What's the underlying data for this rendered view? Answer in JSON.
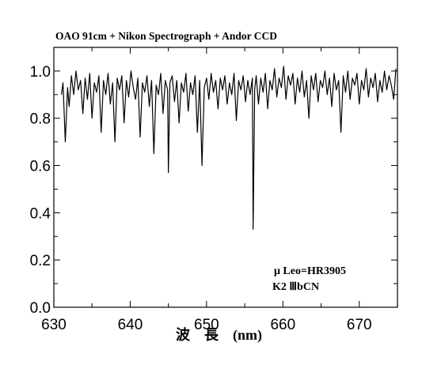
{
  "chart_data": {
    "type": "line",
    "title": "OAO 91cm + Nikon Spectrograph + Andor CCD",
    "xlabel": "波　長　(nm)",
    "ylabel": "",
    "xlim": [
      630,
      675
    ],
    "ylim": [
      0.0,
      1.1
    ],
    "x_ticks": [
      630,
      640,
      650,
      660,
      670
    ],
    "x_tick_labels": [
      "630",
      "640",
      "650",
      "660",
      "670"
    ],
    "y_ticks": [
      0.0,
      0.2,
      0.4,
      0.6,
      0.8,
      1.0
    ],
    "y_tick_labels": [
      "0.0",
      "0.2",
      "0.4",
      "0.6",
      "0.8",
      "1.0"
    ],
    "grid": false,
    "annotations": [
      "μ Leo=HR3905",
      "K2 ⅢbCN"
    ],
    "series": [
      {
        "color": "#000000",
        "x": [
          631.0,
          631.2,
          631.5,
          631.8,
          632.0,
          632.3,
          632.6,
          632.9,
          633.2,
          633.5,
          633.8,
          634.1,
          634.4,
          634.7,
          635.0,
          635.3,
          635.6,
          635.9,
          636.2,
          636.5,
          636.8,
          637.1,
          637.4,
          637.7,
          638.0,
          638.3,
          638.6,
          638.9,
          639.2,
          639.5,
          639.8,
          640.1,
          640.4,
          640.7,
          641.0,
          641.3,
          641.6,
          641.9,
          642.2,
          642.5,
          642.8,
          643.1,
          643.4,
          643.7,
          644.0,
          644.3,
          644.6,
          644.9,
          645.0,
          645.2,
          645.5,
          645.8,
          646.1,
          646.4,
          646.7,
          647.0,
          647.3,
          647.6,
          647.9,
          648.2,
          648.5,
          648.8,
          649.1,
          649.4,
          649.7,
          650.0,
          650.3,
          650.6,
          650.9,
          651.2,
          651.5,
          651.8,
          652.1,
          652.4,
          652.7,
          653.0,
          653.3,
          653.6,
          653.9,
          654.2,
          654.5,
          654.8,
          655.1,
          655.4,
          655.7,
          656.0,
          656.1,
          656.3,
          656.5,
          656.8,
          657.1,
          657.4,
          657.7,
          658.0,
          658.3,
          658.6,
          658.9,
          659.2,
          659.5,
          659.8,
          660.1,
          660.4,
          660.7,
          661.0,
          661.3,
          661.6,
          661.9,
          662.2,
          662.5,
          662.8,
          663.1,
          663.4,
          663.7,
          664.0,
          664.3,
          664.6,
          664.9,
          665.2,
          665.5,
          665.8,
          666.1,
          666.4,
          666.7,
          667.0,
          667.3,
          667.6,
          667.9,
          668.2,
          668.5,
          668.8,
          669.1,
          669.4,
          669.7,
          670.0,
          670.3,
          670.6,
          670.9,
          671.2,
          671.5,
          671.8,
          672.1,
          672.4,
          672.7,
          673.0,
          673.3,
          673.6,
          673.9,
          674.2,
          674.5,
          674.8
        ],
        "y": [
          0.9,
          0.95,
          0.7,
          0.93,
          0.85,
          0.98,
          0.9,
          1.0,
          0.92,
          0.96,
          0.82,
          0.97,
          0.88,
          0.99,
          0.8,
          0.95,
          0.91,
          0.98,
          0.74,
          0.96,
          0.9,
          0.99,
          0.86,
          0.95,
          0.7,
          0.97,
          0.92,
          0.98,
          0.78,
          0.96,
          0.89,
          1.0,
          0.93,
          0.88,
          0.97,
          0.72,
          0.95,
          0.91,
          0.98,
          0.85,
          0.96,
          0.65,
          0.94,
          0.9,
          0.99,
          0.82,
          0.96,
          0.92,
          0.57,
          0.95,
          0.98,
          0.87,
          0.96,
          0.78,
          0.95,
          0.91,
          0.99,
          0.83,
          0.95,
          0.9,
          0.98,
          0.74,
          0.96,
          0.6,
          0.93,
          0.97,
          0.88,
          0.99,
          0.91,
          0.96,
          0.84,
          0.97,
          0.92,
          0.98,
          0.86,
          0.95,
          0.9,
          0.99,
          0.79,
          0.96,
          0.92,
          0.98,
          0.87,
          0.96,
          0.9,
          0.97,
          0.33,
          0.92,
          0.98,
          0.86,
          0.97,
          0.91,
          0.99,
          0.84,
          0.96,
          0.92,
          1.01,
          0.89,
          0.97,
          0.93,
          1.02,
          0.88,
          0.98,
          0.94,
          0.99,
          0.86,
          0.97,
          0.91,
          1.0,
          0.89,
          0.96,
          0.8,
          0.98,
          0.92,
          0.99,
          0.87,
          0.96,
          0.93,
          1.0,
          0.9,
          0.97,
          0.85,
          0.99,
          0.92,
          0.96,
          0.74,
          0.98,
          0.91,
          1.0,
          0.88,
          0.97,
          0.94,
          0.99,
          0.86,
          0.96,
          0.92,
          1.01,
          0.89,
          0.97,
          0.93,
          0.99,
          0.87,
          0.96,
          0.91,
          1.0,
          0.92,
          0.98,
          0.94,
          0.88,
          1.01
        ]
      }
    ]
  }
}
